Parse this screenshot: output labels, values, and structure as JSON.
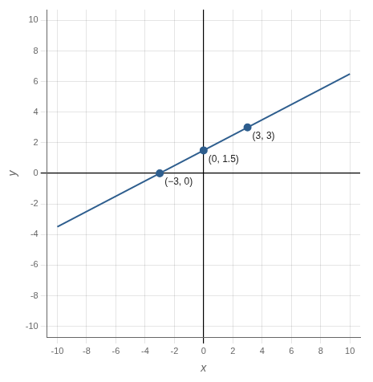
{
  "chart_data": {
    "type": "line",
    "x_label": "x",
    "y_label": "y",
    "xlim": [
      -10.7,
      10.7
    ],
    "ylim": [
      -10.7,
      10.7
    ],
    "xticks": [
      -10,
      -8,
      -6,
      -4,
      -2,
      0,
      2,
      4,
      6,
      8,
      10
    ],
    "yticks": [
      -10,
      -8,
      -6,
      -4,
      -2,
      0,
      2,
      4,
      6,
      8,
      10
    ],
    "grid": true,
    "series": [
      {
        "type": "line",
        "color": "#2E5E8E",
        "x": [
          -10,
          10
        ],
        "values": [
          -3.5,
          6.5
        ]
      },
      {
        "type": "scatter",
        "color": "#2E5E8E",
        "x": [
          -3,
          0,
          3
        ],
        "values": [
          0,
          1.5,
          3
        ]
      }
    ],
    "annotations": [
      {
        "x": -3,
        "y": 0,
        "text": "(−3, 0)"
      },
      {
        "x": 0,
        "y": 1.5,
        "text": "(0, 1.5)"
      },
      {
        "x": 3,
        "y": 3,
        "text": "(3, 3)"
      }
    ]
  }
}
